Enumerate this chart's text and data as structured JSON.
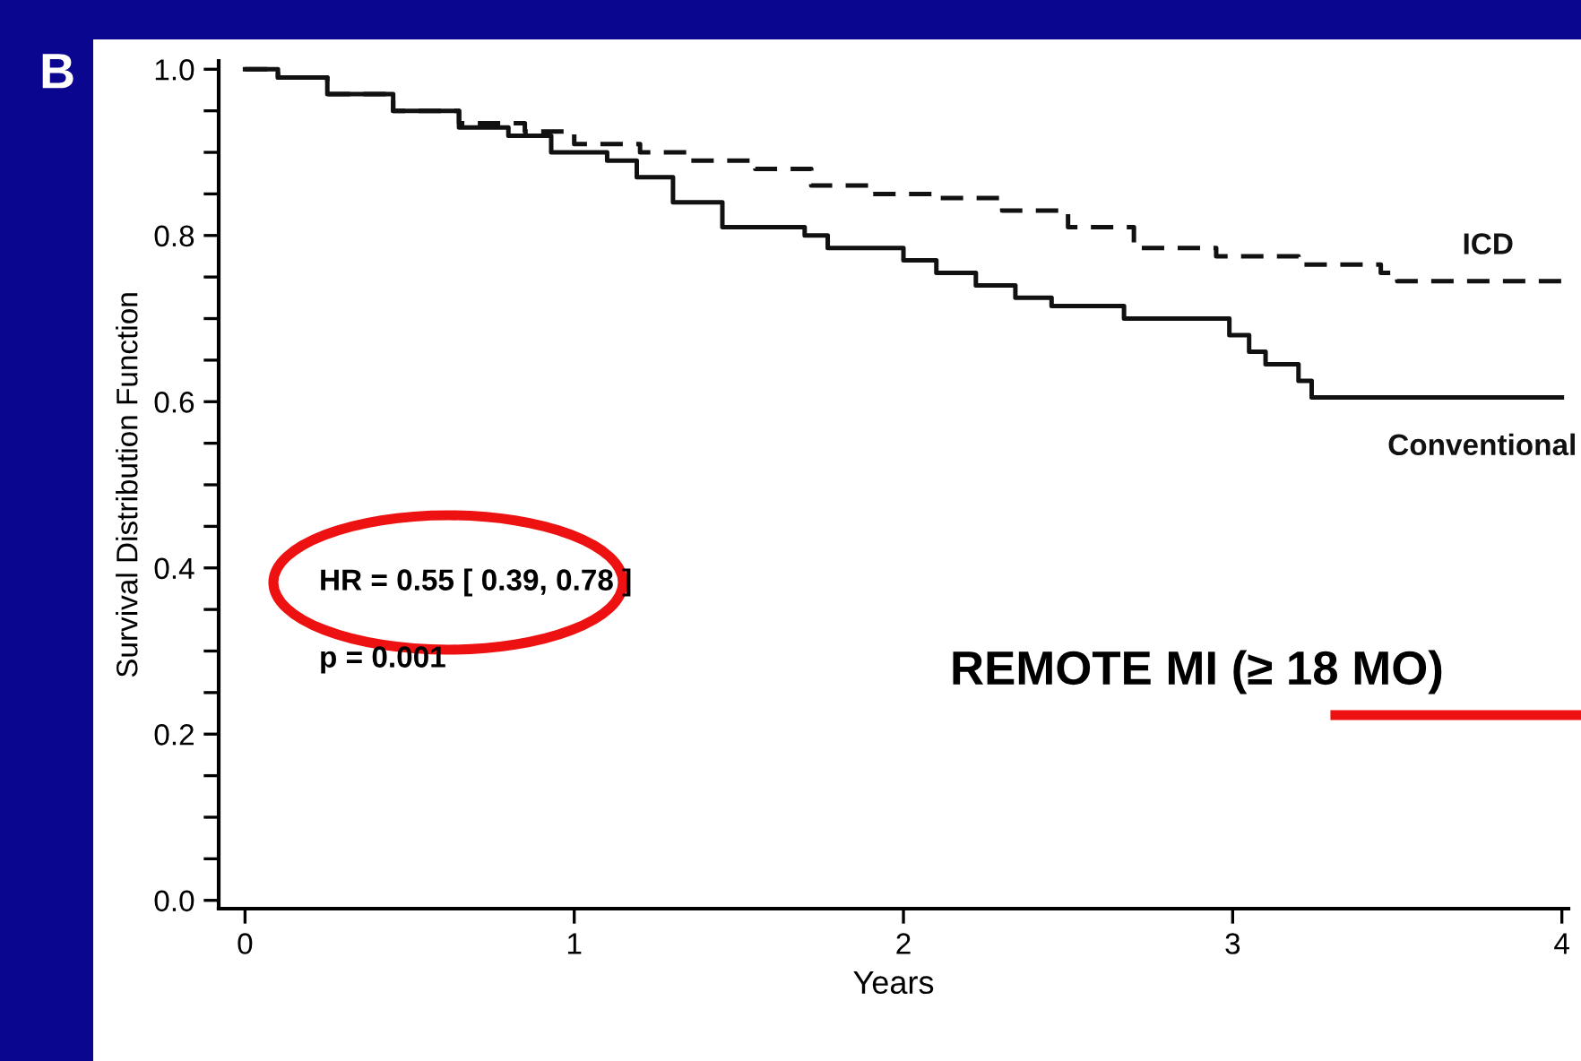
{
  "chart_data": {
    "type": "step",
    "xlabel": "Years",
    "ylabel": "Survival Distribution Function",
    "annotations": [
      "B",
      "HR = 0.55 [ 0.39, 0.78 ]",
      "p = 0.001",
      "REMOTE MI (≥ 18 MO)"
    ],
    "series": [
      {
        "name": "ICD",
        "color": "#111111",
        "line_style": "dashed",
        "x": [
          0,
          0.1,
          0.25,
          0.45,
          0.65,
          0.85,
          1.0,
          1.2,
          1.35,
          1.55,
          1.72,
          1.9,
          2.1,
          2.3,
          2.5,
          2.7,
          2.95,
          3.2,
          3.45,
          3.5,
          4.0
        ],
        "values": [
          1.0,
          0.99,
          0.97,
          0.95,
          0.935,
          0.925,
          0.91,
          0.9,
          0.89,
          0.88,
          0.86,
          0.85,
          0.845,
          0.83,
          0.81,
          0.785,
          0.775,
          0.765,
          0.755,
          0.745,
          0.745
        ]
      },
      {
        "name": "Conventional",
        "color": "#111111",
        "line_style": "solid",
        "x": [
          0,
          0.1,
          0.25,
          0.45,
          0.65,
          0.8,
          0.93,
          1.1,
          1.19,
          1.3,
          1.45,
          1.7,
          1.77,
          2.0,
          2.1,
          2.22,
          2.34,
          2.45,
          2.67,
          2.99,
          3.05,
          3.1,
          3.2,
          3.24,
          4.0
        ],
        "values": [
          1.0,
          0.99,
          0.97,
          0.95,
          0.93,
          0.92,
          0.9,
          0.89,
          0.87,
          0.84,
          0.81,
          0.8,
          0.785,
          0.77,
          0.755,
          0.74,
          0.725,
          0.715,
          0.7,
          0.68,
          0.66,
          0.645,
          0.625,
          0.605,
          0.605
        ]
      }
    ],
    "xlim": [
      -0.08,
      4.02
    ],
    "ylim": [
      -0.01,
      1.01
    ],
    "xticks": [
      0,
      1,
      2,
      3,
      4
    ],
    "yticks": [
      {
        "value": 0.0,
        "label": "0.0"
      },
      {
        "value": 0.05,
        "label": null
      },
      {
        "value": 0.1,
        "label": null
      },
      {
        "value": 0.15,
        "label": null
      },
      {
        "value": 0.2,
        "label": "0.2"
      },
      {
        "value": 0.25,
        "label": null
      },
      {
        "value": 0.3,
        "label": null
      },
      {
        "value": 0.35,
        "label": null
      },
      {
        "value": 0.4,
        "label": "0.4"
      },
      {
        "value": 0.45,
        "label": null
      },
      {
        "value": 0.5,
        "label": null
      },
      {
        "value": 0.55,
        "label": null
      },
      {
        "value": 0.6,
        "label": "0.6"
      },
      {
        "value": 0.65,
        "label": null
      },
      {
        "value": 0.7,
        "label": null
      },
      {
        "value": 0.75,
        "label": null
      },
      {
        "value": 0.8,
        "label": "0.8"
      },
      {
        "value": 0.85,
        "label": null
      },
      {
        "value": 0.9,
        "label": null
      },
      {
        "value": 0.95,
        "label": null
      },
      {
        "value": 1.0,
        "label": "1.0"
      }
    ],
    "grid": false,
    "legend": false
  }
}
